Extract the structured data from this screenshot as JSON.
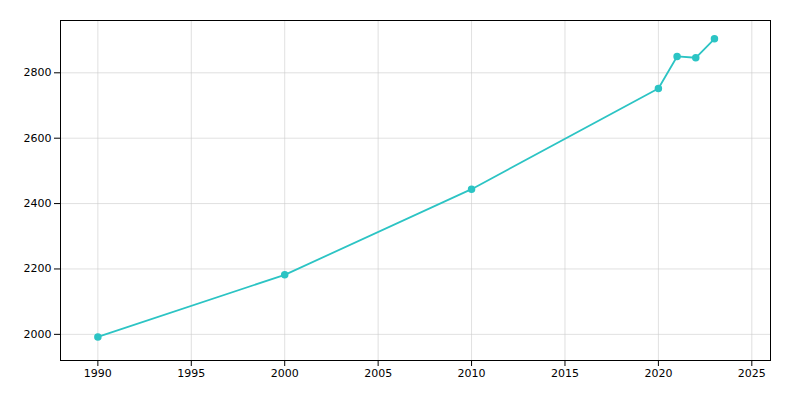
{
  "chart_data": {
    "type": "line",
    "x": [
      1990,
      2000,
      2010,
      2020,
      2021,
      2022,
      2023
    ],
    "values": [
      1992,
      2182,
      2444,
      2752,
      2850,
      2846,
      2904
    ],
    "color": "#2CC4C4",
    "marker": "circle",
    "xlim": [
      1988,
      2026
    ],
    "xticks": [
      1990,
      1995,
      2000,
      2005,
      2010,
      2015,
      2020,
      2025
    ],
    "ylim": [
      1920,
      2960
    ],
    "yticks": [
      2000,
      2200,
      2400,
      2600,
      2800
    ],
    "grid": true
  }
}
